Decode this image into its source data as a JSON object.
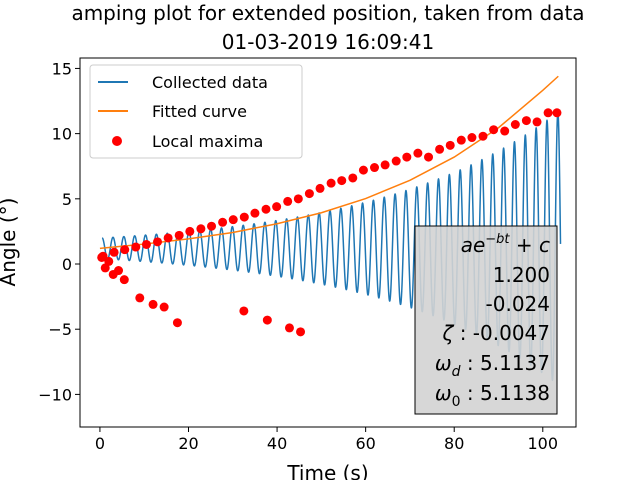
{
  "chart_data": {
    "type": "line",
    "title": "amping plot for extended position, taken from data",
    "subtitle": "01-03-2019 16:09:41",
    "xlabel": "Time (s)",
    "ylabel": "Angle (°)",
    "xlim": [
      -4.5,
      107.5
    ],
    "ylim": [
      -12.5,
      15.8
    ],
    "x_ticks": [
      0,
      20,
      40,
      60,
      80,
      100
    ],
    "y_ticks": [
      -10,
      -5,
      0,
      5,
      10,
      15
    ],
    "grid": false,
    "legend_placement": "top-left",
    "series": [
      {
        "name": "Collected data",
        "kind": "line",
        "color": "#1f77b4",
        "signal": {
          "t_start": 0.5,
          "t_end": 104,
          "period": 2.45,
          "offset": 1.2,
          "amplitude_start": 0.8,
          "amplitude_end": 10.6
        }
      },
      {
        "name": "Fitted curve",
        "kind": "line",
        "color": "#ff7f0e",
        "x": [
          0,
          10,
          20,
          30,
          40,
          50,
          60,
          70,
          80,
          90,
          100,
          103.5
        ],
        "y": [
          1.2,
          1.53,
          1.93,
          2.42,
          3.09,
          3.93,
          5.02,
          6.42,
          8.2,
          10.45,
          13.32,
          14.4
        ]
      },
      {
        "name": "Local maxima",
        "kind": "scatter",
        "color": "#ff0000",
        "x": [
          0.7,
          3.2,
          5.6,
          8.1,
          10.5,
          13.0,
          15.4,
          17.9,
          20.3,
          22.8,
          25.2,
          27.7,
          30.1,
          32.6,
          35.0,
          37.5,
          39.9,
          42.4,
          44.8,
          47.3,
          49.7,
          52.2,
          54.6,
          57.1,
          59.5,
          62.0,
          64.4,
          66.9,
          69.3,
          71.8,
          74.2,
          76.7,
          79.1,
          81.6,
          84.0,
          86.5,
          88.9,
          91.4,
          93.8,
          96.3,
          98.7,
          101.2,
          103.2,
          0.4,
          1.2,
          2.0,
          3.0,
          4.2,
          5.5,
          9.0,
          12.0,
          14.5,
          17.5,
          32.5,
          37.8,
          42.8,
          45.3
        ],
        "y": [
          0.6,
          0.9,
          1.1,
          1.3,
          1.5,
          1.7,
          2.0,
          2.2,
          2.5,
          2.7,
          2.9,
          3.2,
          3.4,
          3.6,
          3.9,
          4.2,
          4.4,
          4.8,
          5.0,
          5.4,
          5.8,
          6.2,
          6.4,
          6.6,
          7.2,
          7.4,
          7.6,
          7.9,
          8.2,
          8.5,
          8.2,
          8.8,
          9.1,
          9.5,
          9.7,
          9.8,
          10.3,
          10.2,
          10.7,
          11.0,
          10.9,
          11.6,
          11.6,
          0.5,
          -0.3,
          0.2,
          -0.8,
          -0.5,
          -1.2,
          -2.6,
          -3.1,
          -3.3,
          -4.5,
          -3.6,
          -4.3,
          -4.9,
          -5.2
        ]
      }
    ],
    "annotation_box": {
      "lines": [
        "ae^{-bt}+c",
        "1.200",
        "-0.024",
        "ζ:-0.0047",
        "ω_d:5.1137",
        "ω_0:5.1138"
      ],
      "placement": "bottom-right"
    }
  }
}
